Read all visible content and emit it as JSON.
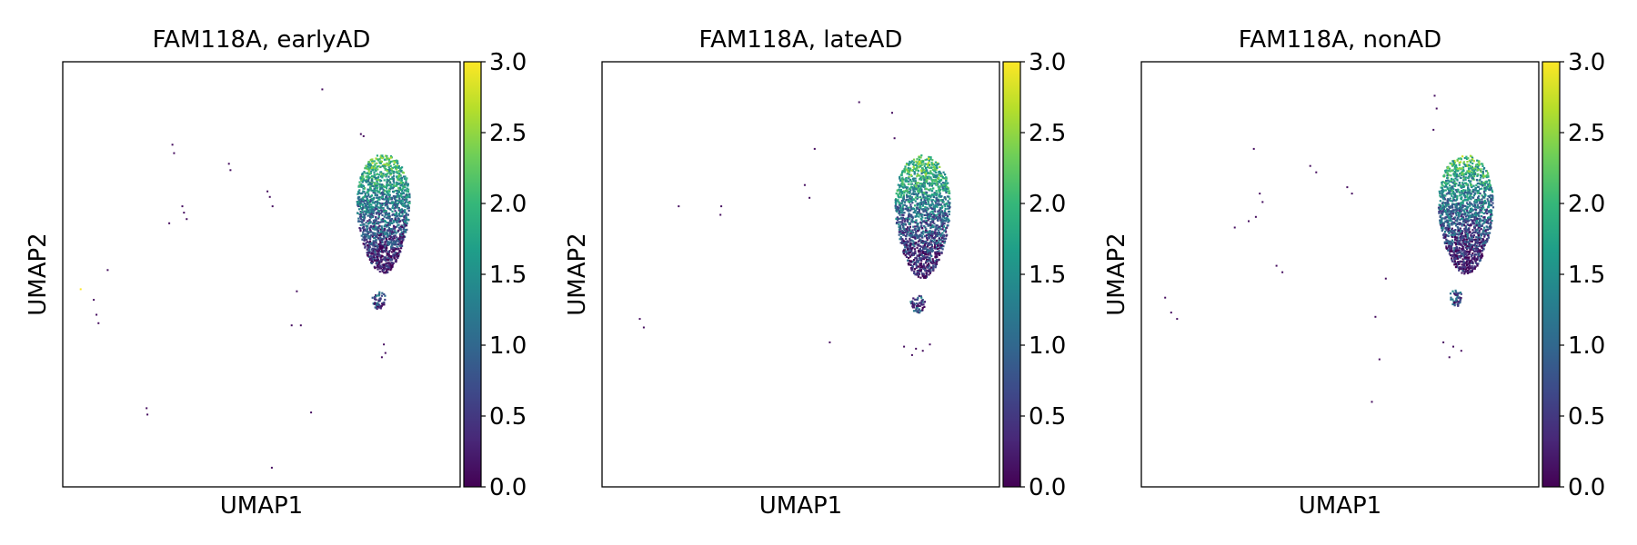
{
  "figure": {
    "colormap": "viridis",
    "colormap_stops": [
      "#440154",
      "#482878",
      "#3e4989",
      "#31688e",
      "#26828e",
      "#1f9e89",
      "#35b779",
      "#6ece58",
      "#b5de2b",
      "#fde725"
    ],
    "background": "#ffffff",
    "text_color": "#000000"
  },
  "chart_data": [
    {
      "type": "scatter",
      "title": "FAM118A, earlyAD",
      "xlabel": "UMAP1",
      "ylabel": "UMAP2",
      "colorbar": {
        "min": 0.0,
        "max": 3.0,
        "ticks": [
          "0.0",
          "0.5",
          "1.0",
          "1.5",
          "2.0",
          "2.5",
          "3.0"
        ]
      },
      "x_ticks_shown": false,
      "y_ticks_shown": false,
      "clusters": [
        {
          "shape": "blob",
          "cx": 8.07,
          "cy": 6.42,
          "rx": 0.79,
          "ry": 1.4,
          "expr_top": 2.3,
          "expr_bottom": 0.15,
          "n": 1700
        },
        {
          "shape": "blob",
          "cx": 7.95,
          "cy": 4.38,
          "rx": 0.22,
          "ry": 0.2,
          "expr_top": 0.9,
          "expr_bottom": 0.6,
          "n": 60
        }
      ],
      "sparse_points": [
        [
          6.53,
          9.35,
          0.1
        ],
        [
          7.5,
          8.3,
          0.1
        ],
        [
          7.57,
          8.25,
          0.1
        ],
        [
          2.76,
          8.05,
          0.1
        ],
        [
          2.8,
          7.85,
          0.1
        ],
        [
          4.18,
          7.6,
          0.1
        ],
        [
          4.22,
          7.45,
          0.1
        ],
        [
          5.15,
          6.95,
          0.1
        ],
        [
          5.21,
          6.82,
          0.1
        ],
        [
          5.28,
          6.6,
          0.1
        ],
        [
          3.01,
          6.6,
          0.1
        ],
        [
          3.05,
          6.45,
          0.1
        ],
        [
          2.68,
          6.2,
          0.1
        ],
        [
          3.12,
          6.3,
          0.1
        ],
        [
          1.13,
          5.1,
          0.1
        ],
        [
          0.45,
          4.65,
          3.0
        ],
        [
          0.78,
          4.4,
          0.1
        ],
        [
          0.85,
          4.05,
          0.1
        ],
        [
          0.9,
          3.85,
          0.1
        ],
        [
          5.89,
          4.6,
          0.1
        ],
        [
          5.76,
          3.8,
          0.1
        ],
        [
          5.99,
          3.8,
          0.1
        ],
        [
          8.08,
          3.35,
          0.1
        ],
        [
          8.12,
          3.15,
          0.1
        ],
        [
          8.03,
          3.05,
          0.1
        ],
        [
          2.11,
          1.85,
          0.1
        ],
        [
          2.13,
          1.7,
          0.1
        ],
        [
          6.25,
          1.75,
          0.1
        ],
        [
          5.26,
          0.45,
          0.1
        ]
      ]
    },
    {
      "type": "scatter",
      "title": "FAM118A, lateAD",
      "xlabel": "UMAP1",
      "ylabel": "UMAP2",
      "colorbar": {
        "min": 0.0,
        "max": 3.0,
        "ticks": [
          "0.0",
          "0.5",
          "1.0",
          "1.5",
          "2.0",
          "2.5",
          "3.0"
        ]
      },
      "x_ticks_shown": false,
      "y_ticks_shown": false,
      "clusters": [
        {
          "shape": "blob",
          "cx": 8.07,
          "cy": 6.35,
          "rx": 0.82,
          "ry": 1.45,
          "expr_top": 2.3,
          "expr_bottom": 0.15,
          "n": 1700
        },
        {
          "shape": "blob",
          "cx": 7.95,
          "cy": 4.3,
          "rx": 0.22,
          "ry": 0.22,
          "expr_top": 0.9,
          "expr_bottom": 0.6,
          "n": 60
        }
      ],
      "sparse_points": [
        [
          6.47,
          9.05,
          0.1
        ],
        [
          7.3,
          8.8,
          0.1
        ],
        [
          7.36,
          8.2,
          0.1
        ],
        [
          5.35,
          7.95,
          0.1
        ],
        [
          5.1,
          7.1,
          0.1
        ],
        [
          5.22,
          6.8,
          0.1
        ],
        [
          1.93,
          6.6,
          0.1
        ],
        [
          3.0,
          6.6,
          0.1
        ],
        [
          2.98,
          6.4,
          0.1
        ],
        [
          0.95,
          3.95,
          0.1
        ],
        [
          1.05,
          3.75,
          0.1
        ],
        [
          5.73,
          3.4,
          0.1
        ],
        [
          7.6,
          3.3,
          0.1
        ],
        [
          7.9,
          3.25,
          0.1
        ],
        [
          8.07,
          3.2,
          0.1
        ],
        [
          7.8,
          3.1,
          0.1
        ],
        [
          8.25,
          3.35,
          0.1
        ]
      ]
    },
    {
      "type": "scatter",
      "title": "FAM118A, nonAD",
      "xlabel": "UMAP1",
      "ylabel": "UMAP2",
      "colorbar": {
        "min": 0.0,
        "max": 3.0,
        "ticks": [
          "0.0",
          "0.5",
          "1.0",
          "1.5",
          "2.0",
          "2.5",
          "3.0"
        ]
      },
      "x_ticks_shown": false,
      "y_ticks_shown": false,
      "clusters": [
        {
          "shape": "blob",
          "cx": 8.17,
          "cy": 6.4,
          "rx": 0.82,
          "ry": 1.4,
          "expr_top": 2.2,
          "expr_bottom": 0.15,
          "n": 1700
        },
        {
          "shape": "blob",
          "cx": 7.92,
          "cy": 4.45,
          "rx": 0.18,
          "ry": 0.22,
          "expr_top": 0.9,
          "expr_bottom": 0.6,
          "n": 50
        }
      ],
      "sparse_points": [
        [
          7.38,
          9.2,
          0.1
        ],
        [
          7.43,
          8.9,
          0.1
        ],
        [
          7.35,
          8.4,
          0.1
        ],
        [
          2.83,
          7.95,
          0.1
        ],
        [
          4.25,
          7.55,
          0.1
        ],
        [
          4.4,
          7.4,
          0.1
        ],
        [
          5.18,
          7.05,
          0.1
        ],
        [
          5.3,
          6.9,
          0.1
        ],
        [
          2.98,
          6.9,
          0.1
        ],
        [
          3.05,
          6.7,
          0.1
        ],
        [
          2.88,
          6.35,
          0.1
        ],
        [
          2.7,
          6.25,
          0.1
        ],
        [
          2.35,
          6.1,
          0.1
        ],
        [
          3.4,
          5.2,
          0.1
        ],
        [
          3.55,
          5.05,
          0.1
        ],
        [
          6.15,
          4.9,
          0.1
        ],
        [
          0.6,
          4.45,
          0.1
        ],
        [
          0.75,
          4.1,
          0.1
        ],
        [
          0.9,
          3.95,
          0.1
        ],
        [
          5.89,
          4.0,
          0.1
        ],
        [
          7.6,
          3.4,
          0.1
        ],
        [
          7.85,
          3.3,
          0.1
        ],
        [
          8.05,
          3.2,
          0.1
        ],
        [
          7.75,
          3.05,
          0.1
        ],
        [
          5.99,
          3.0,
          0.1
        ],
        [
          5.8,
          2.0,
          0.1
        ]
      ]
    }
  ]
}
